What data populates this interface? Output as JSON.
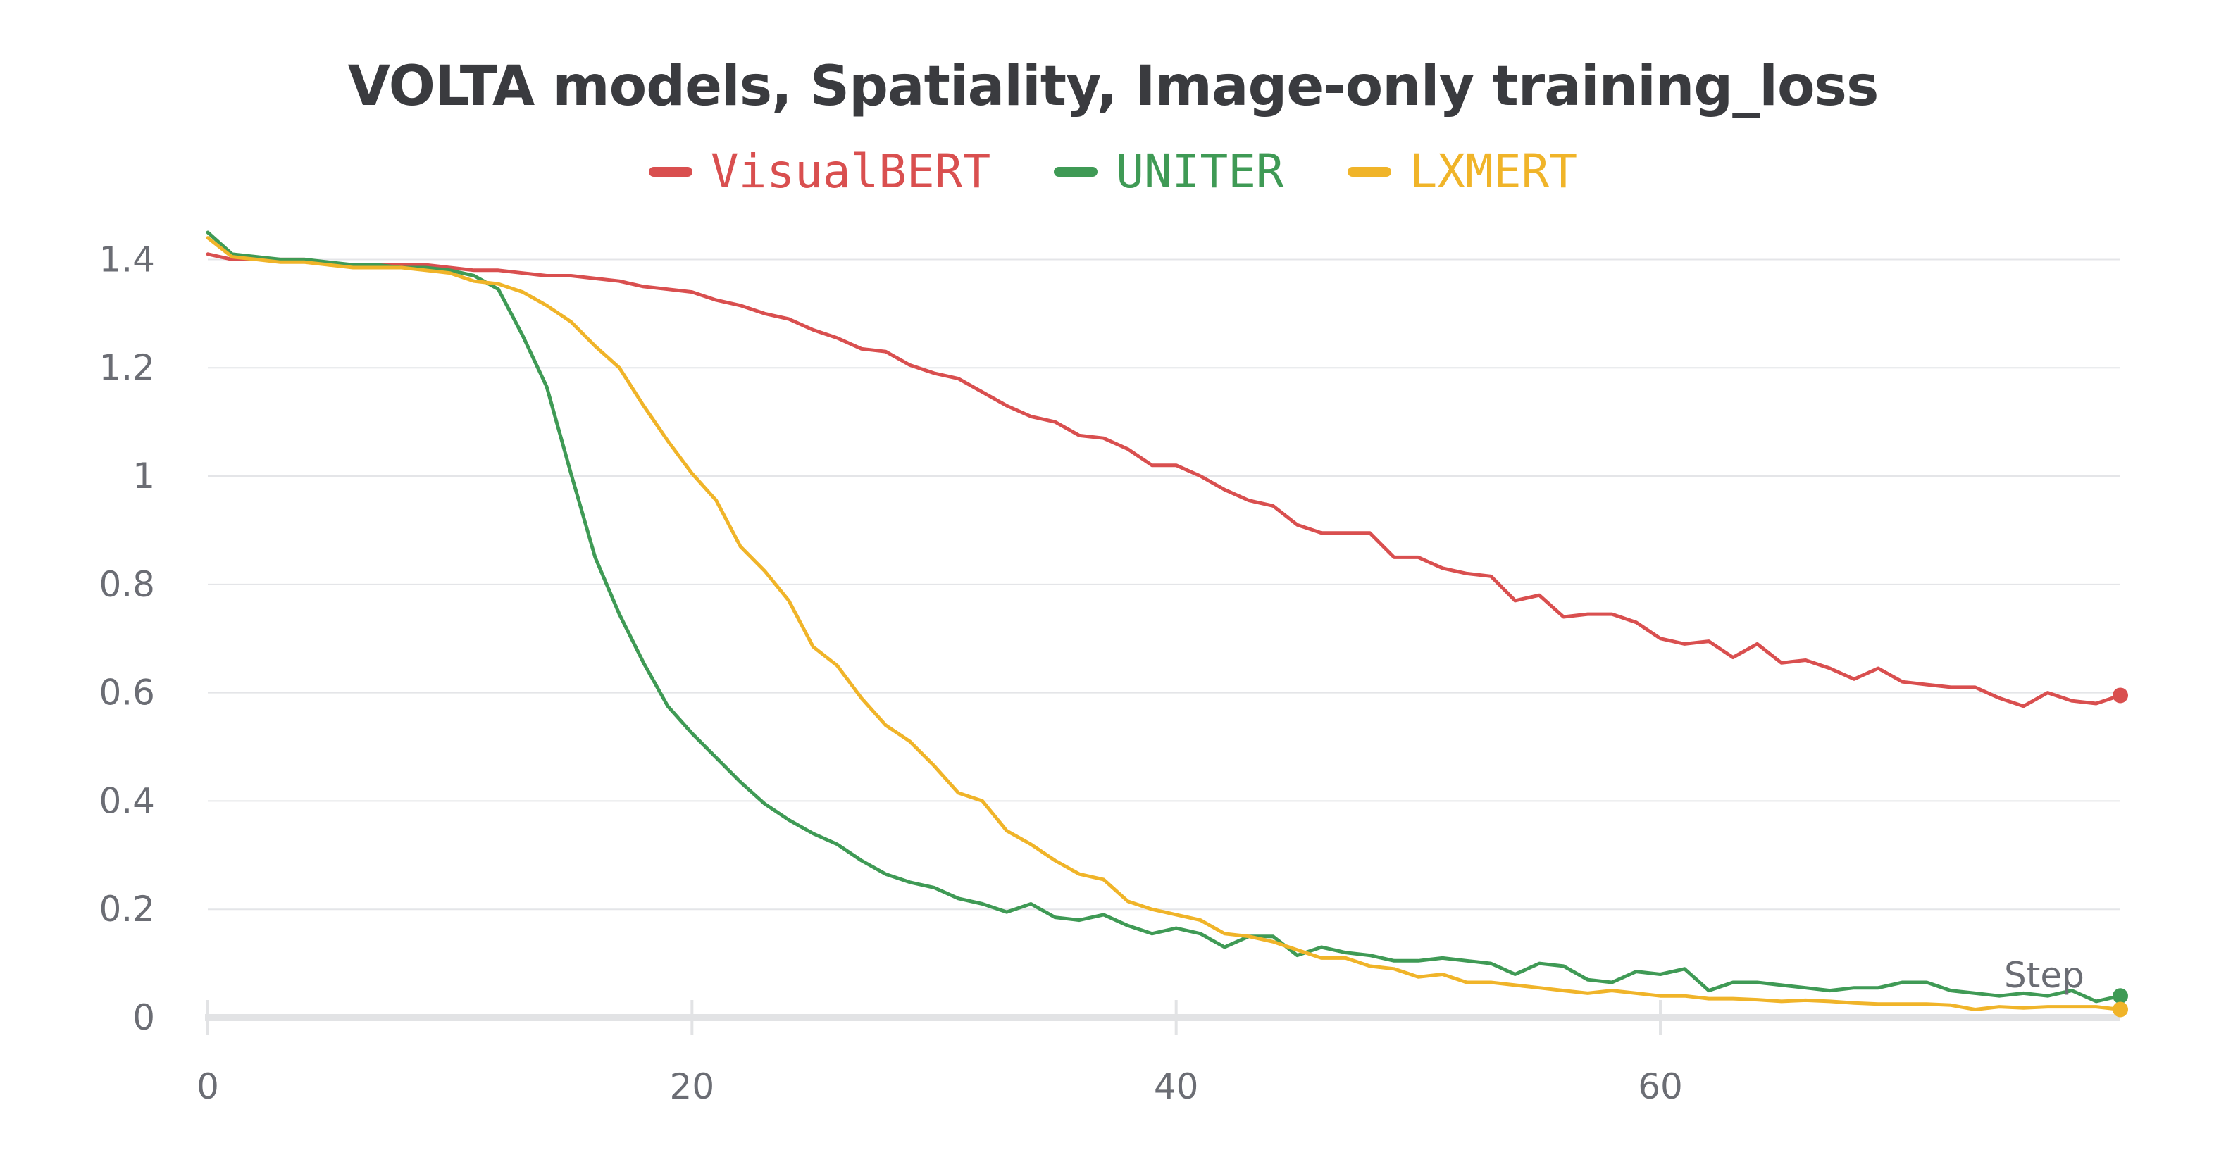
{
  "chart_data": {
    "type": "line",
    "title": "VOLTA models, Spatiality, Image-only training_loss",
    "xlabel": "Step",
    "ylabel": "",
    "xlim": [
      0,
      79
    ],
    "ylim": [
      0,
      1.45
    ],
    "x_ticks": [
      "0",
      "20",
      "40",
      "60"
    ],
    "y_ticks": [
      "0",
      "0.2",
      "0.4",
      "0.6",
      "0.8",
      "1",
      "1.2",
      "1.4"
    ],
    "series": [
      {
        "name": "VisualBERT",
        "color": "#d94f4f",
        "values": [
          1.41,
          1.4,
          1.4,
          1.4,
          1.4,
          1.39,
          1.39,
          1.39,
          1.39,
          1.39,
          1.385,
          1.38,
          1.38,
          1.375,
          1.37,
          1.37,
          1.365,
          1.36,
          1.35,
          1.345,
          1.34,
          1.325,
          1.315,
          1.3,
          1.29,
          1.27,
          1.255,
          1.235,
          1.23,
          1.205,
          1.19,
          1.18,
          1.155,
          1.13,
          1.11,
          1.1,
          1.075,
          1.07,
          1.05,
          1.02,
          1.02,
          1.0,
          0.975,
          0.955,
          0.945,
          0.91,
          0.895,
          0.895,
          0.895,
          0.85,
          0.85,
          0.83,
          0.82,
          0.815,
          0.77,
          0.78,
          0.74,
          0.745,
          0.745,
          0.73,
          0.7,
          0.69,
          0.695,
          0.665,
          0.69,
          0.655,
          0.66,
          0.645,
          0.625,
          0.645,
          0.62,
          0.615,
          0.61,
          0.61,
          0.59,
          0.575,
          0.6,
          0.585,
          0.58,
          0.595
        ]
      },
      {
        "name": "UNITER",
        "color": "#3f9a55",
        "values": [
          1.45,
          1.41,
          1.405,
          1.4,
          1.4,
          1.395,
          1.39,
          1.39,
          1.385,
          1.385,
          1.38,
          1.37,
          1.345,
          1.26,
          1.165,
          1.005,
          0.85,
          0.745,
          0.655,
          0.575,
          0.525,
          0.48,
          0.435,
          0.395,
          0.365,
          0.34,
          0.32,
          0.29,
          0.265,
          0.25,
          0.24,
          0.22,
          0.21,
          0.195,
          0.21,
          0.185,
          0.18,
          0.19,
          0.17,
          0.155,
          0.165,
          0.155,
          0.13,
          0.15,
          0.15,
          0.115,
          0.13,
          0.12,
          0.115,
          0.105,
          0.105,
          0.11,
          0.105,
          0.1,
          0.08,
          0.1,
          0.095,
          0.07,
          0.065,
          0.085,
          0.08,
          0.09,
          0.05,
          0.065,
          0.065,
          0.06,
          0.055,
          0.05,
          0.055,
          0.055,
          0.065,
          0.065,
          0.05,
          0.045,
          0.04,
          0.045,
          0.04,
          0.05,
          0.03,
          0.04
        ]
      },
      {
        "name": "LXMERT",
        "color": "#f0b429",
        "values": [
          1.44,
          1.405,
          1.4,
          1.395,
          1.395,
          1.39,
          1.385,
          1.385,
          1.385,
          1.38,
          1.375,
          1.36,
          1.355,
          1.34,
          1.315,
          1.285,
          1.24,
          1.2,
          1.13,
          1.065,
          1.005,
          0.955,
          0.87,
          0.825,
          0.77,
          0.685,
          0.65,
          0.59,
          0.54,
          0.51,
          0.465,
          0.415,
          0.4,
          0.345,
          0.32,
          0.29,
          0.265,
          0.255,
          0.215,
          0.2,
          0.19,
          0.18,
          0.155,
          0.15,
          0.14,
          0.125,
          0.11,
          0.11,
          0.095,
          0.09,
          0.075,
          0.08,
          0.065,
          0.065,
          0.06,
          0.055,
          0.05,
          0.045,
          0.05,
          0.045,
          0.04,
          0.04,
          0.035,
          0.035,
          0.033,
          0.03,
          0.032,
          0.03,
          0.027,
          0.025,
          0.025,
          0.025,
          0.023,
          0.015,
          0.02,
          0.018,
          0.02,
          0.02,
          0.02,
          0.015
        ]
      }
    ]
  }
}
